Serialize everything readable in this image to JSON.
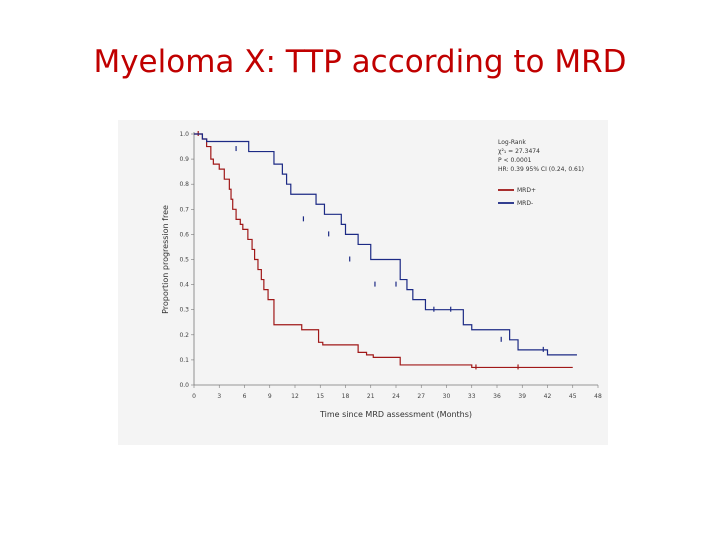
{
  "slide": {
    "title": "Myeloma X: TTP according to MRD"
  },
  "chart_data": {
    "type": "line",
    "title": "",
    "xlabel": "Time since MRD assessment (Months)",
    "ylabel": "Proportion progression free",
    "xlim": [
      0,
      48
    ],
    "ylim": [
      0,
      1.0
    ],
    "x_ticks": [
      "0",
      "3",
      "6",
      "9",
      "12",
      "15",
      "18",
      "21",
      "24",
      "27",
      "30",
      "33",
      "36",
      "39",
      "42",
      "45",
      "48"
    ],
    "y_ticks": [
      "0.0",
      "0.1",
      "0.2",
      "0.3",
      "0.4",
      "0.5",
      "0.6",
      "0.7",
      "0.8",
      "0.9",
      "1.0"
    ],
    "legend_placement": "top-right",
    "legend": {
      "lines": [
        "Log-Rank",
        "χ²₁ = 27.3474",
        "P < 0.0001",
        "HR: 0.39 95% CI (0.24, 0.61)"
      ],
      "entries": [
        "MRD+",
        "MRD-"
      ]
    },
    "series": [
      {
        "name": "MRD+",
        "color": "#a01818",
        "steps": [
          [
            0,
            1.0
          ],
          [
            1,
            0.98
          ],
          [
            1.5,
            0.95
          ],
          [
            2.0,
            0.9
          ],
          [
            2.3,
            0.88
          ],
          [
            3.0,
            0.86
          ],
          [
            3.6,
            0.82
          ],
          [
            4.2,
            0.78
          ],
          [
            4.4,
            0.74
          ],
          [
            4.6,
            0.7
          ],
          [
            5.0,
            0.66
          ],
          [
            5.5,
            0.64
          ],
          [
            5.8,
            0.62
          ],
          [
            6.4,
            0.58
          ],
          [
            6.9,
            0.54
          ],
          [
            7.2,
            0.5
          ],
          [
            7.6,
            0.46
          ],
          [
            8.0,
            0.42
          ],
          [
            8.3,
            0.38
          ],
          [
            8.8,
            0.34
          ],
          [
            9.5,
            0.24
          ],
          [
            12.8,
            0.22
          ],
          [
            14.8,
            0.17
          ],
          [
            15.3,
            0.16
          ],
          [
            19.5,
            0.13
          ],
          [
            20.5,
            0.12
          ],
          [
            21.3,
            0.11
          ],
          [
            24.5,
            0.08
          ],
          [
            33.0,
            0.07
          ],
          [
            45.0,
            0.07
          ]
        ],
        "censors": [
          [
            0.5,
            1.0
          ],
          [
            33.5,
            0.07
          ],
          [
            38.5,
            0.07
          ]
        ]
      },
      {
        "name": "MRD-",
        "color": "#1c2a85",
        "steps": [
          [
            0,
            1.0
          ],
          [
            1.0,
            0.98
          ],
          [
            1.5,
            0.97
          ],
          [
            6.5,
            0.93
          ],
          [
            9.5,
            0.88
          ],
          [
            10.5,
            0.84
          ],
          [
            11.0,
            0.8
          ],
          [
            11.5,
            0.76
          ],
          [
            14.5,
            0.72
          ],
          [
            15.5,
            0.68
          ],
          [
            17.5,
            0.64
          ],
          [
            18.0,
            0.6
          ],
          [
            19.5,
            0.56
          ],
          [
            21.0,
            0.5
          ],
          [
            24.5,
            0.42
          ],
          [
            25.3,
            0.38
          ],
          [
            26.0,
            0.34
          ],
          [
            27.5,
            0.3
          ],
          [
            32.0,
            0.24
          ],
          [
            33.0,
            0.22
          ],
          [
            37.5,
            0.18
          ],
          [
            38.5,
            0.14
          ],
          [
            42.0,
            0.12
          ],
          [
            45.5,
            0.12
          ]
        ],
        "censors": [
          [
            5.0,
            0.94
          ],
          [
            13.0,
            0.66
          ],
          [
            16.0,
            0.6
          ],
          [
            18.5,
            0.5
          ],
          [
            21.5,
            0.4
          ],
          [
            24.0,
            0.4
          ],
          [
            28.5,
            0.3
          ],
          [
            30.5,
            0.3
          ],
          [
            36.5,
            0.18
          ],
          [
            41.5,
            0.14
          ]
        ]
      }
    ]
  }
}
